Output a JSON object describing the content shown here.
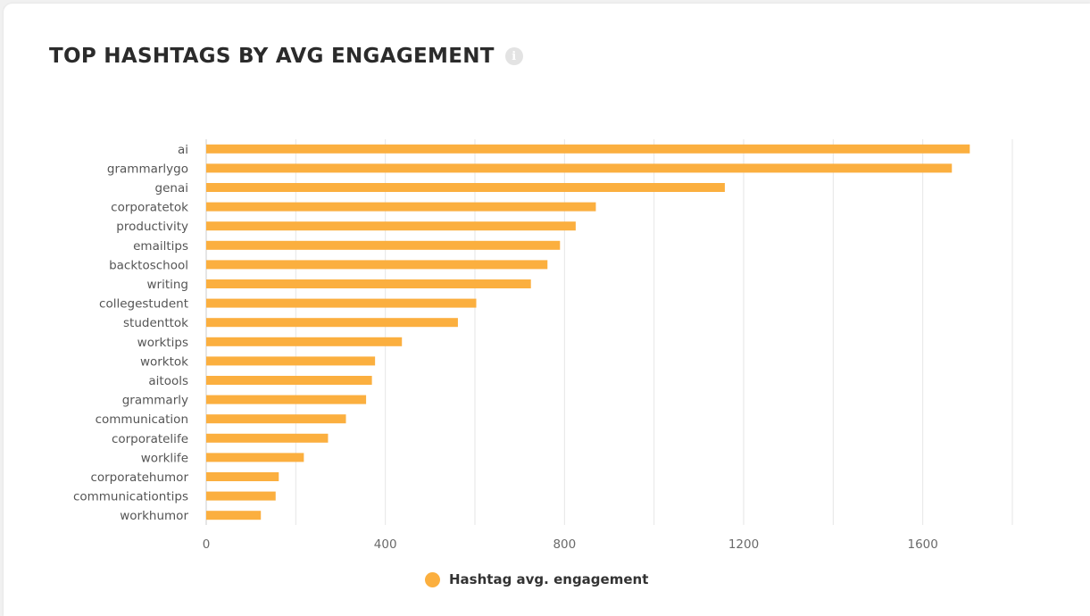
{
  "card": {
    "title": "TOP HASHTAGS BY AVG ENGAGEMENT",
    "info_icon": "info-icon",
    "info_glyph": "i"
  },
  "colors": {
    "bar": "#fbaf3f",
    "grid": "#e6e6e6",
    "axis": "#cccccc"
  },
  "chart_data": {
    "type": "bar",
    "orientation": "horizontal",
    "title": "TOP HASHTAGS BY AVG ENGAGEMENT",
    "xlabel": "",
    "ylabel": "",
    "xlim": [
      0,
      1800
    ],
    "x_ticks": [
      0,
      400,
      800,
      1200,
      1600
    ],
    "grid": true,
    "legend_position": "bottom-center",
    "categories": [
      "ai",
      "grammarlygo",
      "genai",
      "corporatetok",
      "productivity",
      "emailtips",
      "backtoschool",
      "writing",
      "collegestudent",
      "studenttok",
      "worktips",
      "worktok",
      "aitools",
      "grammarly",
      "communication",
      "corporatelife",
      "worklife",
      "corporatehumor",
      "communicationtips",
      "workhumor"
    ],
    "series": [
      {
        "name": "Hashtag avg. engagement",
        "values": [
          1705,
          1665,
          1158,
          870,
          825,
          790,
          762,
          725,
          603,
          562,
          437,
          377,
          370,
          357,
          312,
          272,
          218,
          162,
          155,
          122
        ]
      }
    ]
  }
}
